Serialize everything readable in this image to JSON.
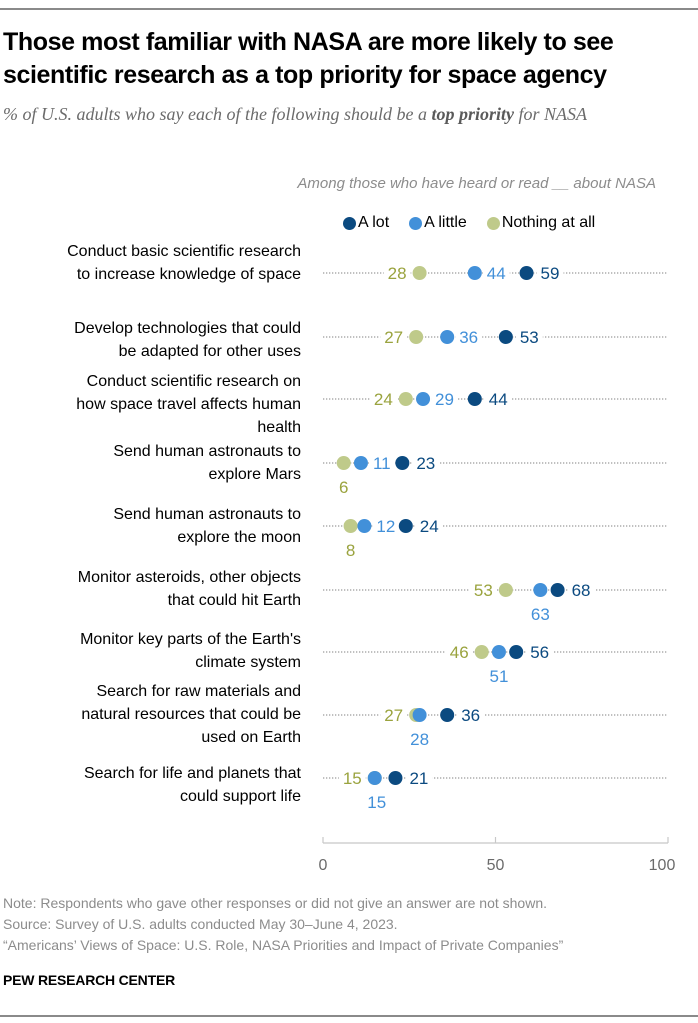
{
  "header": {
    "title_line1": "Those most familiar with NASA are more likely to see",
    "title_line2": "scientific research as a top priority for space agency",
    "subtitle_pre": "% of U.S. adults who say each of the following should be a ",
    "subtitle_bold": "top priority",
    "subtitle_post": " for NASA"
  },
  "chart_data": {
    "type": "scatter",
    "subtype": "dot-plot",
    "title": "Those most familiar with NASA are more likely to see scientific research as a top priority for space agency",
    "subtitle": "% of U.S. adults who say each of the following should be a top priority for NASA",
    "group_label": "Among those who have heard or read __ about NASA",
    "xlim": [
      0,
      100
    ],
    "xticks": [
      0,
      50,
      100
    ],
    "legend_position": "top",
    "series": [
      {
        "name": "A lot",
        "color": "#0b4a80",
        "values": [
          59,
          53,
          44,
          23,
          24,
          68,
          56,
          36,
          21
        ]
      },
      {
        "name": "A little",
        "color": "#4290d9",
        "values": [
          44,
          36,
          29,
          11,
          12,
          63,
          51,
          28,
          15
        ]
      },
      {
        "name": "Nothing at all",
        "color": "#bfca8a",
        "values": [
          28,
          27,
          24,
          6,
          8,
          53,
          46,
          27,
          15
        ]
      }
    ],
    "label_colors": {
      "A lot": "#0b4a80",
      "A little": "#4290d9",
      "Nothing at all": "#9aa33e"
    },
    "categories": [
      [
        "Conduct basic scientific research",
        "to increase knowledge of space"
      ],
      [
        "Develop technologies that could",
        "be adapted for other uses"
      ],
      [
        "Conduct scientific research on",
        "how space travel affects human",
        "health"
      ],
      [
        "Send human astronauts to",
        "explore Mars"
      ],
      [
        "Send human astronauts to",
        "explore the moon"
      ],
      [
        "Monitor asteroids, other objects",
        "that could hit Earth"
      ],
      [
        "Monitor key parts of the Earth's",
        "climate system"
      ],
      [
        "Search for raw materials and",
        "natural resources that could be",
        "used on Earth"
      ],
      [
        "Search for life and planets that",
        "could support life"
      ]
    ]
  },
  "footer": {
    "note": "Note: Respondents who gave other responses or did not give an answer are not shown.",
    "source": "Source: Survey of U.S. adults conducted May 30–June 4, 2023.",
    "report": "“Americans’ Views of Space: U.S. Role, NASA Priorities and Impact of Private Companies”",
    "brand": "PEW RESEARCH CENTER"
  }
}
